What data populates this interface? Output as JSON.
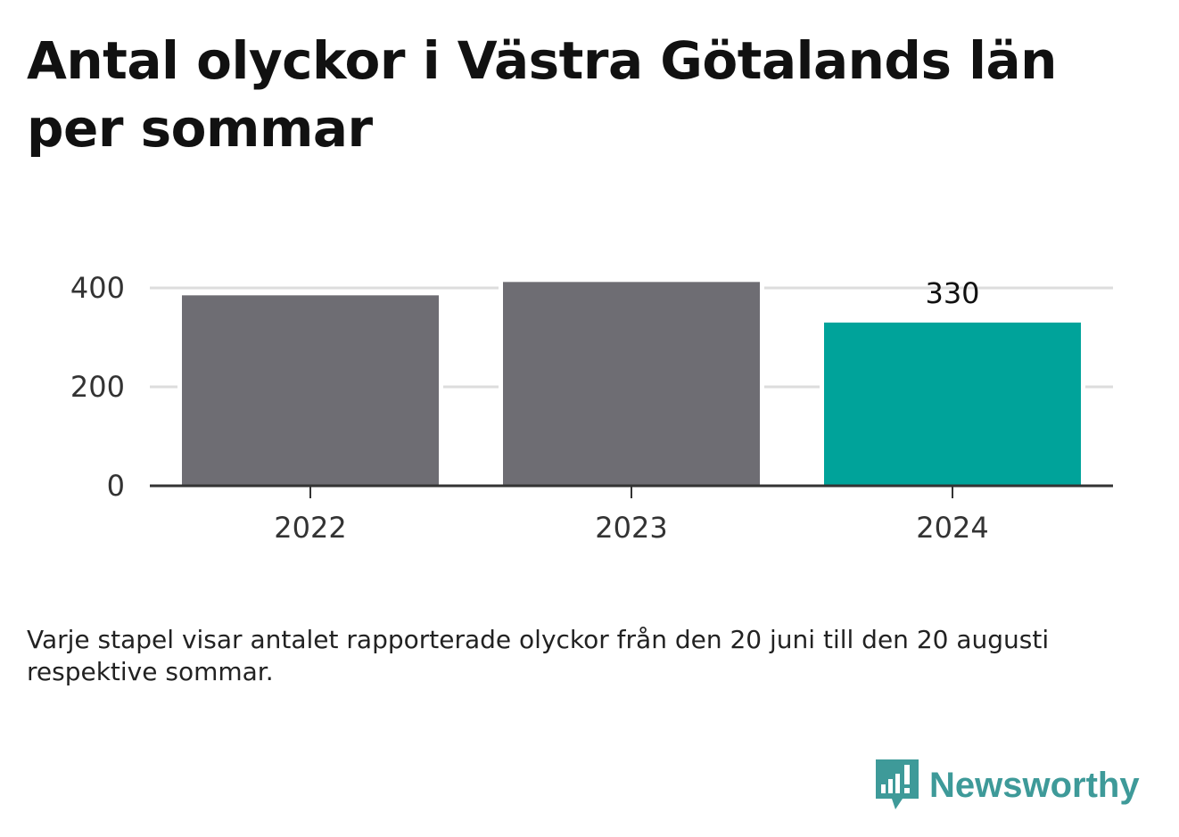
{
  "chart_data": {
    "type": "bar",
    "title": "Antal olyckor i Västra Götalands län per sommar",
    "categories": [
      "2022",
      "2023",
      "2024"
    ],
    "values": [
      385,
      412,
      330
    ],
    "highlight_index": 2,
    "data_labels": [
      "",
      "",
      "330"
    ],
    "ylim": [
      0,
      480
    ],
    "yticks": [
      0,
      200,
      400
    ],
    "grid": true,
    "colors": {
      "default": "#6e6d73",
      "highlight": "#00a39a",
      "grid": "#dddddd",
      "axis": "#333333"
    }
  },
  "caption": "Varje stapel visar antalet rapporterade olyckor från den 20 juni till den 20 augusti respektive sommar.",
  "brand": {
    "name": "Newsworthy",
    "icon": "bar-chart-speech-bubble-icon",
    "color": "#3e9a99"
  }
}
